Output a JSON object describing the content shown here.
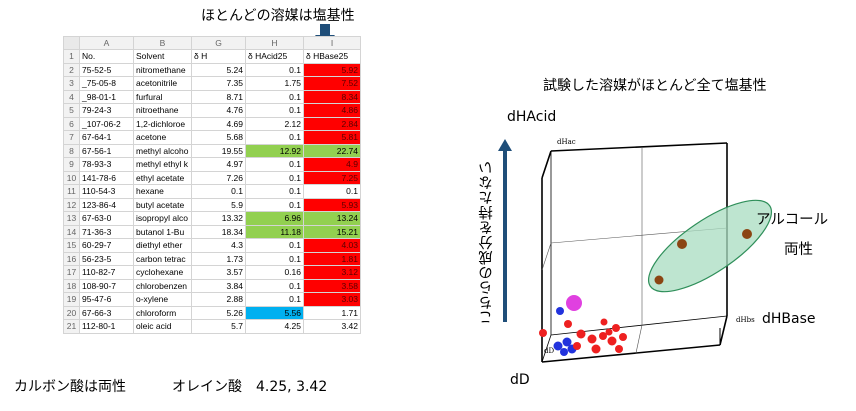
{
  "top_caption": "ほとんどの溶媒は塩基性",
  "right_title": "試験した溶媒がほとんど全て塩基性",
  "bottom_caption": "カルボン酸は両性",
  "bottom_note": "オレイン酸　4.25, 3.42",
  "colors": {
    "red": "#ff0000",
    "green": "#92d050",
    "blue": "#00b0f0",
    "arrow": "#1f4e79",
    "ellipse": "#a8dcc0"
  },
  "sheet": {
    "col_letters": [
      "",
      "A",
      "B",
      "G",
      "H",
      "I"
    ],
    "rows": [
      {
        "n": "1",
        "no": "No.",
        "solvent": "Solvent",
        "dh": "δ H",
        "acid": "δ HAcid25",
        "base": "δ HBase25",
        "hdr": true
      },
      {
        "n": "2",
        "no": "75-52-5",
        "solvent": "nitromethane",
        "dh": "5.24",
        "acid": "0.1",
        "base": "5.92",
        "bc": "red"
      },
      {
        "n": "3",
        "no": "_75-05-8",
        "solvent": "acetonitrile",
        "dh": "7.35",
        "acid": "1.75",
        "base": "7.52",
        "bc": "red"
      },
      {
        "n": "4",
        "no": "_98-01-1",
        "solvent": "furfural",
        "dh": "8.71",
        "acid": "0.1",
        "base": "8.34",
        "bc": "red"
      },
      {
        "n": "5",
        "no": "79-24-3",
        "solvent": "nitroethane",
        "dh": "4.76",
        "acid": "0.1",
        "base": "4.86",
        "bc": "red"
      },
      {
        "n": "6",
        "no": "_107-06-2",
        "solvent": "1,2-dichloroe",
        "dh": "4.69",
        "acid": "2.12",
        "base": "2.84",
        "bc": "red"
      },
      {
        "n": "7",
        "no": "67-64-1",
        "solvent": "acetone",
        "dh": "5.68",
        "acid": "0.1",
        "base": "5.81",
        "bc": "red"
      },
      {
        "n": "8",
        "no": "67-56-1",
        "solvent": "methyl alcoho",
        "dh": "19.55",
        "acid": "12.92",
        "base": "22.74",
        "ac": "green",
        "bc": "green"
      },
      {
        "n": "9",
        "no": "78-93-3",
        "solvent": "methyl ethyl k",
        "dh": "4.97",
        "acid": "0.1",
        "base": "4.9",
        "bc": "red"
      },
      {
        "n": "10",
        "no": "141-78-6",
        "solvent": "ethyl acetate",
        "dh": "7.26",
        "acid": "0.1",
        "base": "7.25",
        "bc": "red"
      },
      {
        "n": "11",
        "no": "110-54-3",
        "solvent": "hexane",
        "dh": "0.1",
        "acid": "0.1",
        "base": "0.1"
      },
      {
        "n": "12",
        "no": "123-86-4",
        "solvent": "butyl acetate",
        "dh": "5.9",
        "acid": "0.1",
        "base": "5.93",
        "bc": "red"
      },
      {
        "n": "13",
        "no": "67-63-0",
        "solvent": "isopropyl alco",
        "dh": "13.32",
        "acid": "6.96",
        "base": "13.24",
        "ac": "green",
        "bc": "green"
      },
      {
        "n": "14",
        "no": "71-36-3",
        "solvent": "butanol 1-Bu",
        "dh": "18.34",
        "acid": "11.18",
        "base": "15.21",
        "ac": "green",
        "bc": "green"
      },
      {
        "n": "15",
        "no": "60-29-7",
        "solvent": "diethyl ether",
        "dh": "4.3",
        "acid": "0.1",
        "base": "4.03",
        "bc": "red"
      },
      {
        "n": "16",
        "no": "56-23-5",
        "solvent": "carbon tetrac",
        "dh": "1.73",
        "acid": "0.1",
        "base": "1.81",
        "bc": "red"
      },
      {
        "n": "17",
        "no": "110-82-7",
        "solvent": "cyclohexane",
        "dh": "3.57",
        "acid": "0.16",
        "base": "3.12",
        "bc": "red"
      },
      {
        "n": "18",
        "no": "108-90-7",
        "solvent": "chlorobenzen",
        "dh": "3.84",
        "acid": "0.1",
        "base": "3.58",
        "bc": "red"
      },
      {
        "n": "19",
        "no": "95-47-6",
        "solvent": "o-xylene",
        "dh": "2.88",
        "acid": "0.1",
        "base": "3.03",
        "bc": "red"
      },
      {
        "n": "20",
        "no": "67-66-3",
        "solvent": "chloroform",
        "dh": "5.26",
        "acid": "5.56",
        "base": "1.71",
        "ac": "blue"
      },
      {
        "n": "21",
        "no": "112-80-1",
        "solvent": "oleic acid",
        "dh": "5.7",
        "acid": "4.25",
        "base": "3.42"
      }
    ]
  },
  "plot": {
    "y_label": "dHAcid",
    "x_label": "dHBase",
    "z_label": "dD",
    "small_hac": "dHac",
    "small_hbs": "dHbs",
    "small_dd": "dD",
    "vertical_note": "こちらの成分を持たない",
    "ellipse_label_1": "アルコール",
    "ellipse_label_2": "両性"
  }
}
